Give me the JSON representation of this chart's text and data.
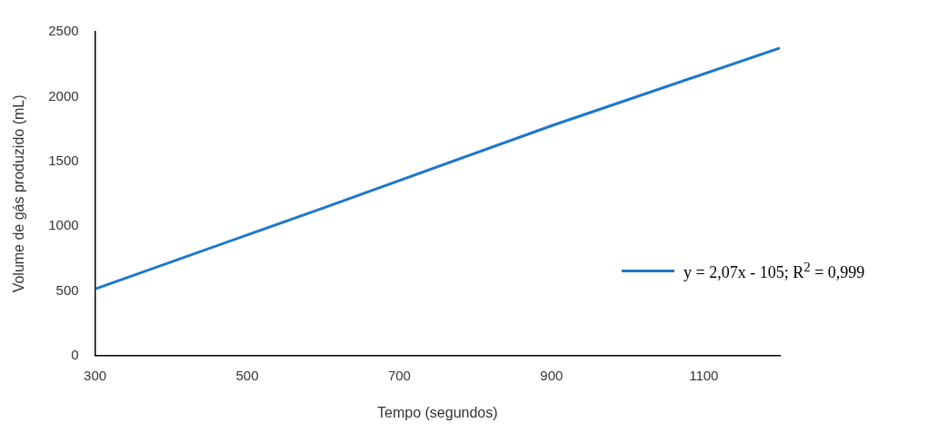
{
  "chart_data": {
    "type": "line",
    "xlabel": "Tempo (segundos)",
    "ylabel": "Volume de gás produzido (mL)",
    "x": [
      300,
      600,
      900,
      1200
    ],
    "series": [
      {
        "name": "y = 2,07x - 105; R$^{2}$ = 0,999",
        "color": "#1f77c8",
        "values": [
          515,
          1140,
          1775,
          2375
        ]
      }
    ],
    "xlim": [
      300,
      1200
    ],
    "xticks": [
      300,
      500,
      700,
      900,
      1100
    ],
    "ylim": [
      0,
      2500
    ],
    "yticks": [
      0,
      500,
      1000,
      1500,
      2000,
      2500
    ],
    "grid": false,
    "legend": "right",
    "marker": "none",
    "line_style": "solid"
  }
}
